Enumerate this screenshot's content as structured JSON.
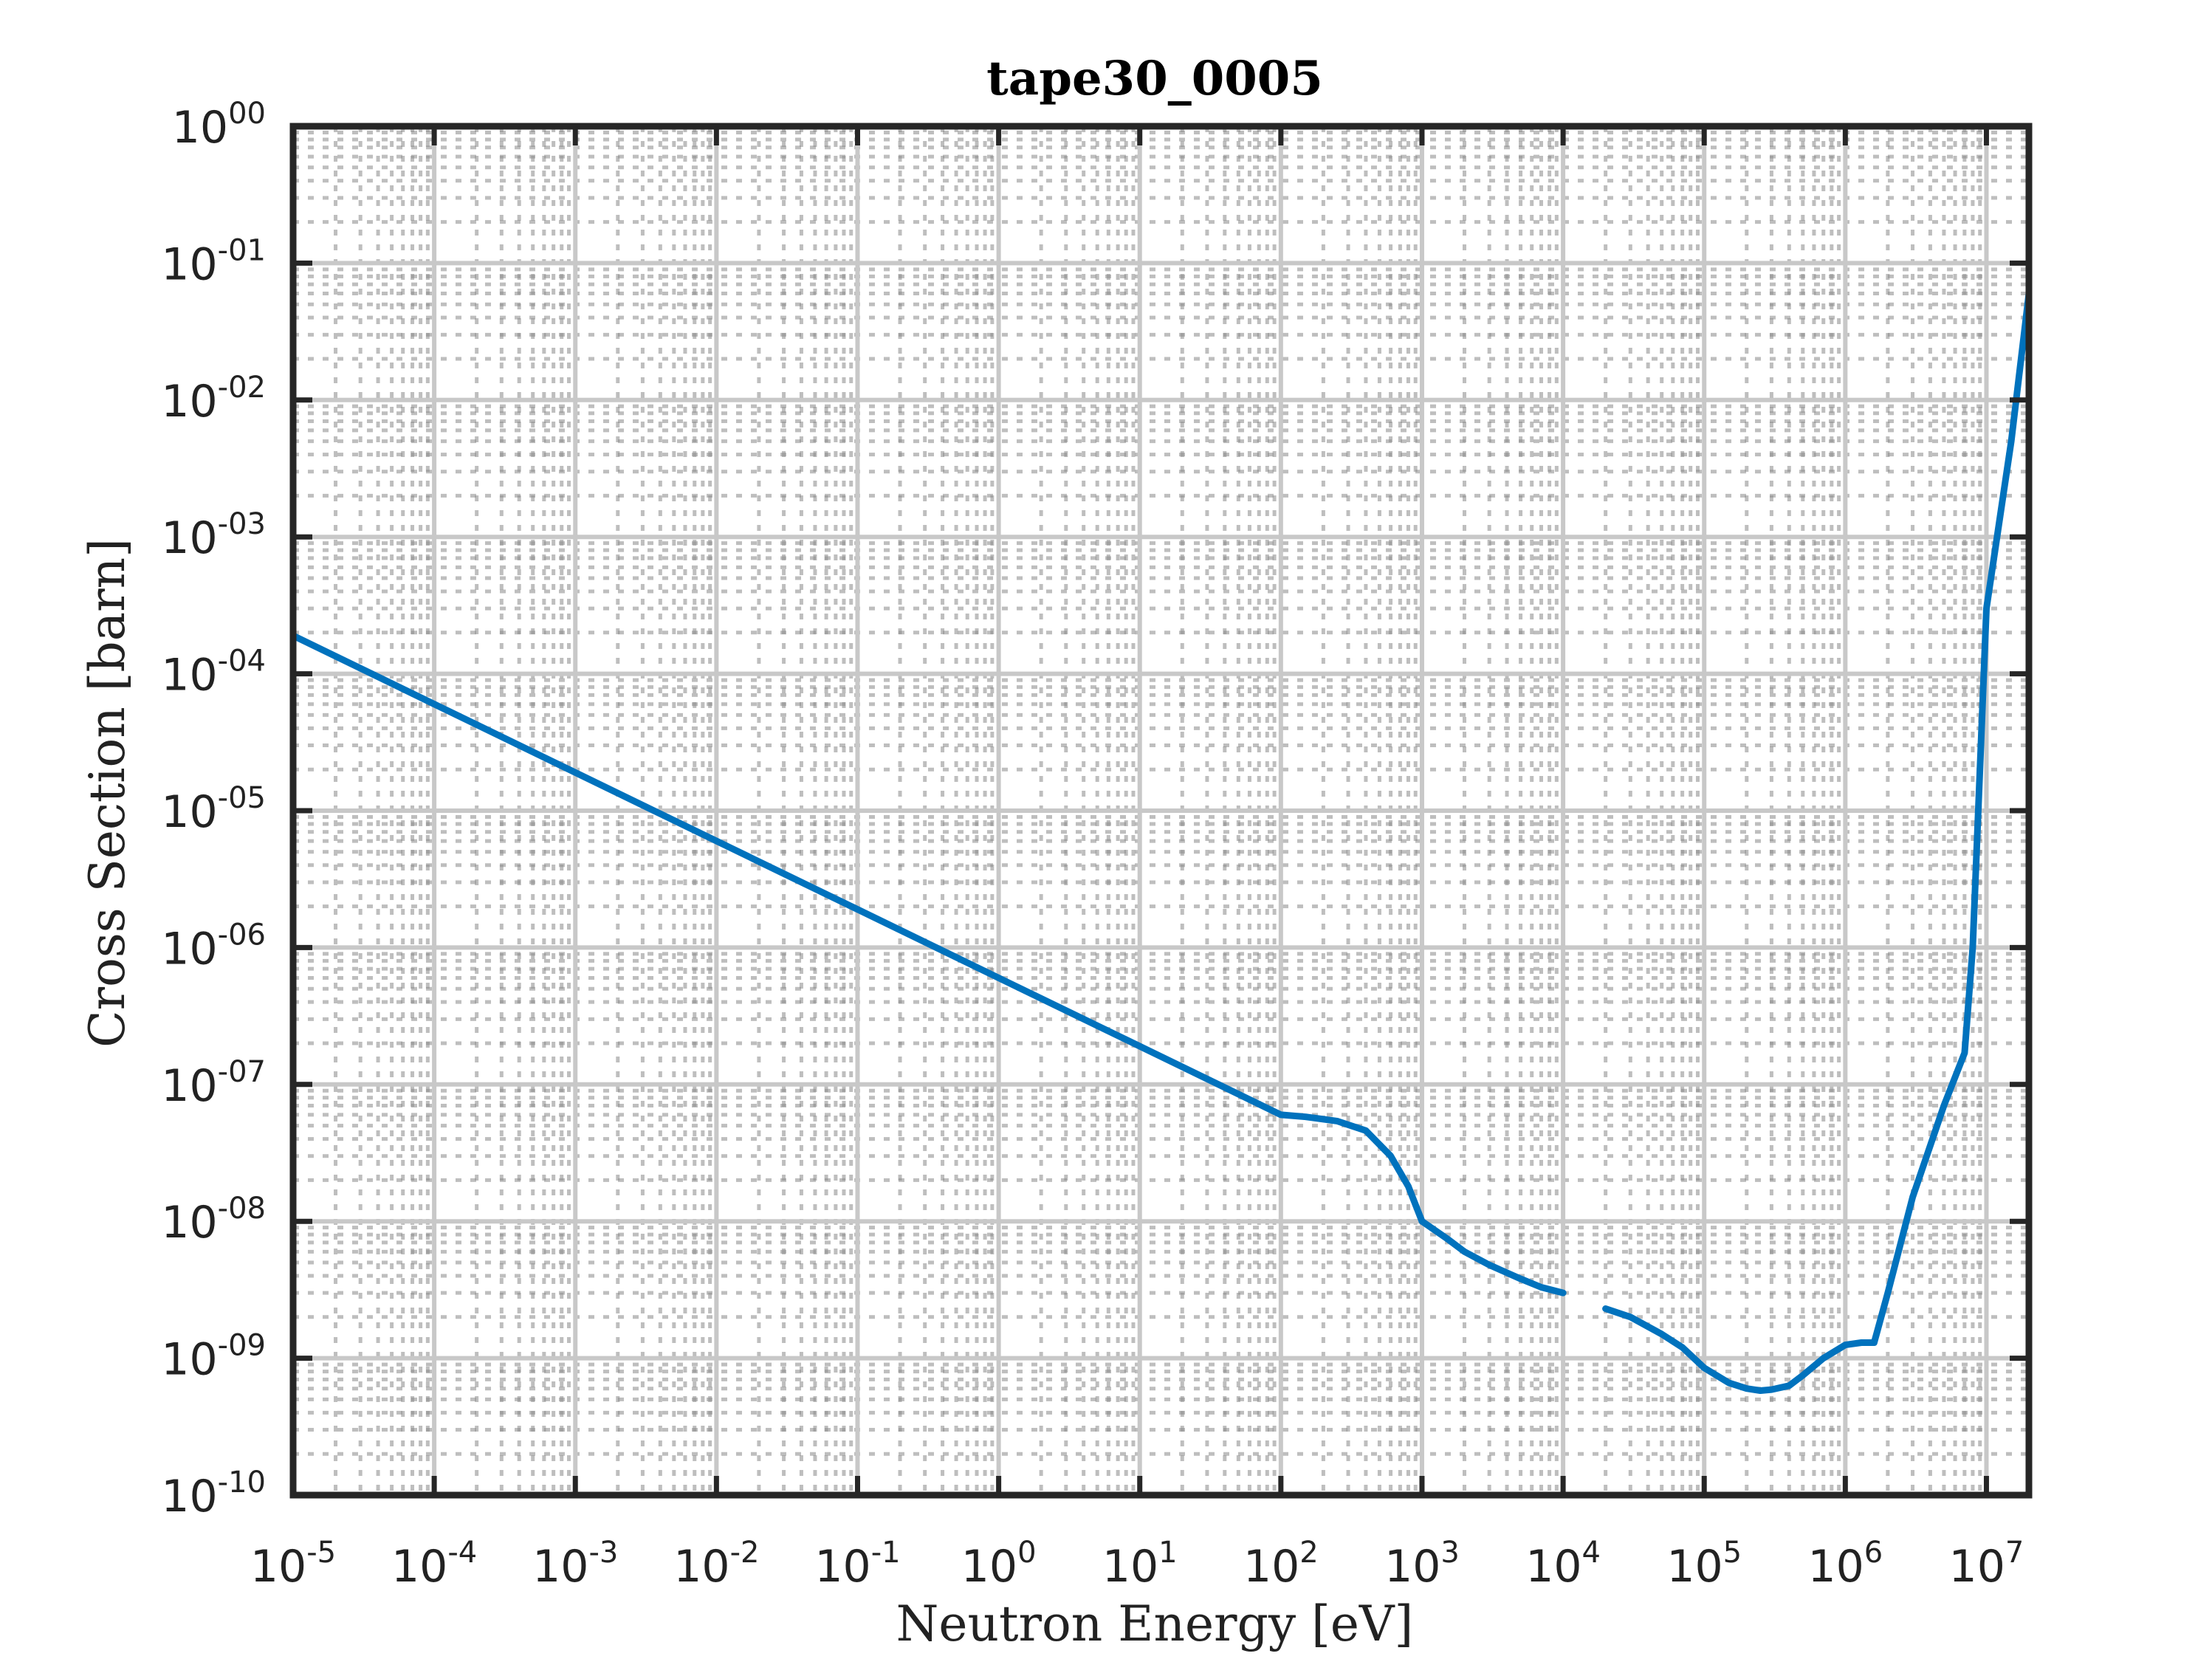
{
  "chart_data": {
    "type": "line",
    "title": "tape30_0005",
    "xlabel": "Neutron Energy [eV]",
    "ylabel": "Cross Section [barn]",
    "xscale": "log",
    "yscale": "log",
    "xlim": [
      1e-05,
      20000000.0
    ],
    "ylim": [
      1e-10,
      1
    ],
    "grid": true,
    "minor_grid": true,
    "legend": "none",
    "x_ticks": [
      {
        "value": 1e-05,
        "base": "10",
        "exp": "-5"
      },
      {
        "value": 0.0001,
        "base": "10",
        "exp": "-4"
      },
      {
        "value": 0.001,
        "base": "10",
        "exp": "-3"
      },
      {
        "value": 0.01,
        "base": "10",
        "exp": "-2"
      },
      {
        "value": 0.1,
        "base": "10",
        "exp": "-1"
      },
      {
        "value": 1,
        "base": "10",
        "exp": "0"
      },
      {
        "value": 10,
        "base": "10",
        "exp": "1"
      },
      {
        "value": 100,
        "base": "10",
        "exp": "2"
      },
      {
        "value": 1000,
        "base": "10",
        "exp": "3"
      },
      {
        "value": 10000,
        "base": "10",
        "exp": "4"
      },
      {
        "value": 100000,
        "base": "10",
        "exp": "5"
      },
      {
        "value": 1000000,
        "base": "10",
        "exp": "6"
      },
      {
        "value": 10000000,
        "base": "10",
        "exp": "7"
      }
    ],
    "y_ticks": [
      {
        "value": 1e-10,
        "base": "10",
        "exp": "-10"
      },
      {
        "value": 1e-09,
        "base": "10",
        "exp": "-09"
      },
      {
        "value": 1e-08,
        "base": "10",
        "exp": "-08"
      },
      {
        "value": 1e-07,
        "base": "10",
        "exp": "-07"
      },
      {
        "value": 1e-06,
        "base": "10",
        "exp": "-06"
      },
      {
        "value": 1e-05,
        "base": "10",
        "exp": "-05"
      },
      {
        "value": 0.0001,
        "base": "10",
        "exp": "-04"
      },
      {
        "value": 0.001,
        "base": "10",
        "exp": "-03"
      },
      {
        "value": 0.01,
        "base": "10",
        "exp": "-02"
      },
      {
        "value": 0.1,
        "base": "10",
        "exp": "-01"
      },
      {
        "value": 1,
        "base": "10",
        "exp": "00"
      }
    ],
    "series": [
      {
        "color": "#0072BD",
        "segments": [
          {
            "x": [
              1e-05,
              0.0001,
              0.001,
              0.01,
              0.1,
              1,
              10,
              100,
              150,
              250,
              400,
              600,
              800,
              1000
            ],
            "y": [
              0.00019,
              6e-05,
              1.9e-05,
              6e-06,
              1.9e-06,
              6e-07,
              1.9e-07,
              6e-08,
              5.8e-08,
              5.4e-08,
              4.6e-08,
              3e-08,
              1.8e-08,
              1e-08
            ]
          },
          {
            "x": [
              1000,
              1500,
              2000,
              3000,
              5000,
              7000,
              10000
            ],
            "y": [
              1e-08,
              7.5e-09,
              6e-09,
              4.8e-09,
              3.8e-09,
              3.3e-09,
              3e-09
            ]
          },
          {
            "x": [
              20000,
              30000,
              50000,
              70000,
              100000,
              150000,
              200000,
              250000,
              300000,
              400000,
              500000,
              700000,
              1000000,
              1300000,
              1600000,
              2000000,
              3000000,
              5000000,
              7000000,
              8000000,
              10000000,
              15000000,
              20000000
            ],
            "y": [
              2.3e-09,
              2e-09,
              1.5e-09,
              1.2e-09,
              8.5e-10,
              6.6e-10,
              6e-10,
              5.8e-10,
              5.9e-10,
              6.3e-10,
              7.5e-10,
              1e-09,
              1.25e-09,
              1.3e-09,
              1.3e-09,
              3e-09,
              1.5e-08,
              7e-08,
              1.7e-07,
              1e-06,
              0.0003,
              0.005,
              0.06
            ]
          }
        ]
      }
    ]
  }
}
